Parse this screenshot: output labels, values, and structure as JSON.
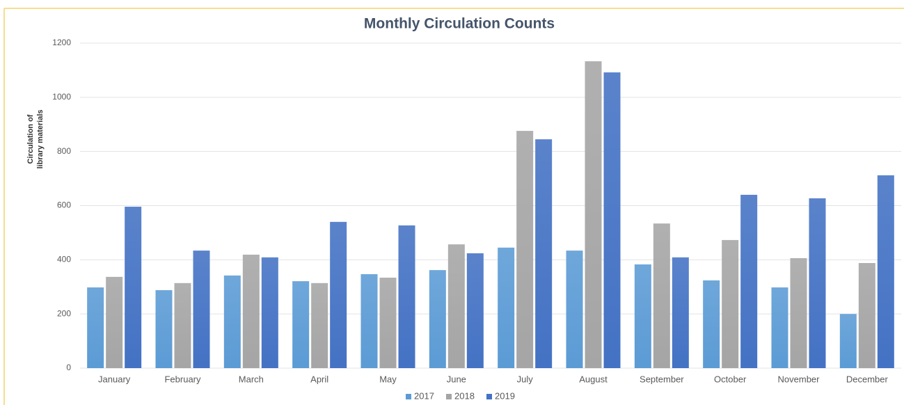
{
  "chart_data": {
    "type": "bar",
    "title": "Monthly Circulation Counts",
    "y_label": [
      "Circulation of",
      "library materials"
    ],
    "categories": [
      "January",
      "February",
      "March",
      "April",
      "May",
      "June",
      "July",
      "August",
      "September",
      "October",
      "November",
      "December"
    ],
    "series": [
      {
        "name": "2017",
        "color": "#5b9bd5",
        "values": [
          298,
          288,
          342,
          321,
          347,
          362,
          445,
          434,
          383,
          324,
          298,
          200
        ]
      },
      {
        "name": "2018",
        "color": "#a5a5a5",
        "values": [
          337,
          314,
          419,
          314,
          334,
          457,
          876,
          1133,
          534,
          473,
          406,
          388
        ]
      },
      {
        "name": "2019",
        "color": "#4472c4",
        "values": [
          596,
          434,
          409,
          540,
          527,
          424,
          845,
          1092,
          409,
          640,
          627,
          712
        ]
      }
    ],
    "ylim": [
      0,
      1200
    ],
    "yticks": [
      0,
      200,
      400,
      600,
      800,
      1000,
      1200
    ],
    "grid": true,
    "legend": "bottom"
  }
}
